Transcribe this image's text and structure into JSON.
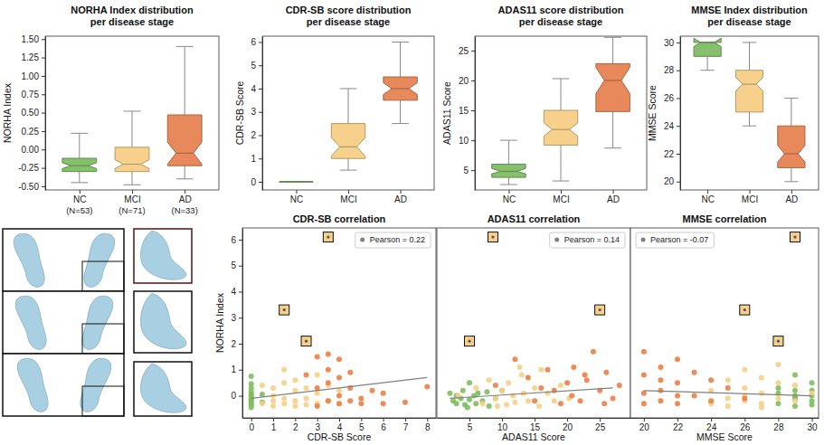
{
  "chart_data": [
    {
      "type": "box",
      "title": "NORHA Index distribution per disease stage",
      "y_label": "NORHA Index",
      "categories": [
        "NC",
        "MCI",
        "AD"
      ],
      "category_notes": [
        "(N=53)",
        "(N=71)",
        "(N=33)"
      ],
      "colors": [
        "#86c06c",
        "#f7d18b",
        "#e8895c"
      ],
      "boxes": [
        {
          "min": -0.45,
          "q1": -0.3,
          "median": -0.22,
          "q3": -0.12,
          "max": 0.22,
          "notch_low": -0.26,
          "notch_high": -0.18
        },
        {
          "min": -0.48,
          "q1": -0.3,
          "median": -0.2,
          "q3": 0.03,
          "max": 0.52,
          "notch_low": -0.26,
          "notch_high": -0.14
        },
        {
          "min": -0.4,
          "q1": -0.22,
          "median": -0.05,
          "q3": 0.47,
          "max": 1.4,
          "notch_low": -0.2,
          "notch_high": 0.1
        }
      ],
      "ylim": [
        -0.55,
        1.54
      ],
      "yticks": [
        {
          "value": -0.5,
          "label": "-0.50"
        },
        {
          "value": -0.25,
          "label": "-0.25"
        },
        {
          "value": 0,
          "label": "0.00"
        },
        {
          "value": 0.25,
          "label": "0.25"
        },
        {
          "value": 0.5,
          "label": "0.50"
        },
        {
          "value": 0.75,
          "label": "0.75"
        },
        {
          "value": 1,
          "label": "1.00"
        },
        {
          "value": 1.25,
          "label": "1.25"
        },
        {
          "value": 1.5,
          "label": "1.50"
        }
      ]
    },
    {
      "type": "box",
      "title": "CDR-SB score distribution per disease stage",
      "y_label": "CDR-SB Score",
      "categories": [
        "NC",
        "MCI",
        "AD"
      ],
      "colors": [
        "#86c06c",
        "#f7d18b",
        "#e8895c"
      ],
      "boxes": [
        {
          "min": 0,
          "q1": 0,
          "median": 0,
          "q3": 0,
          "max": 0,
          "notch_low": 0,
          "notch_high": 0
        },
        {
          "min": 0.5,
          "q1": 1.0,
          "median": 1.5,
          "q3": 2.5,
          "max": 4.0,
          "notch_low": 1.1,
          "notch_high": 1.9
        },
        {
          "min": 2.5,
          "q1": 3.5,
          "median": 4.0,
          "q3": 4.5,
          "max": 6.0,
          "notch_low": 3.75,
          "notch_high": 4.25
        }
      ],
      "ylim": [
        -0.35,
        6.25
      ],
      "yticks": [
        0,
        1,
        2,
        3,
        4,
        5,
        6
      ]
    },
    {
      "type": "box",
      "title": "ADAS11 score distribution per disease stage",
      "y_label": "ADAS11 Score",
      "categories": [
        "NC",
        "MCI",
        "AD"
      ],
      "colors": [
        "#86c06c",
        "#f7d18b",
        "#e8895c"
      ],
      "boxes": [
        {
          "min": 2.6,
          "q1": 3.8,
          "median": 4.8,
          "q3": 6.0,
          "max": 10,
          "notch_low": 4.4,
          "notch_high": 5.3
        },
        {
          "min": 3.2,
          "q1": 9.2,
          "median": 11.8,
          "q3": 15,
          "max": 20.3,
          "notch_low": 10.7,
          "notch_high": 12.9
        },
        {
          "min": 8.7,
          "q1": 14.8,
          "median": 20,
          "q3": 22.8,
          "max": 27.2,
          "notch_low": 17.8,
          "notch_high": 22.2
        }
      ],
      "ylim": [
        1.7,
        27.4
      ],
      "yticks": [
        5,
        10,
        15,
        20,
        25
      ]
    },
    {
      "type": "box",
      "title": "MMSE Index distribution per disease stage",
      "y_label": "MMSE Score",
      "categories": [
        "NC",
        "MCI",
        "AD"
      ],
      "colors": [
        "#86c06c",
        "#f7d18b",
        "#e8895c"
      ],
      "boxes": [
        {
          "min": 28,
          "q1": 29,
          "median": 30,
          "q3": 30,
          "max": 30,
          "notch_low": 29.7,
          "notch_high": 30.3
        },
        {
          "min": 24,
          "q1": 25,
          "median": 27,
          "q3": 28,
          "max": 30,
          "notch_low": 26.5,
          "notch_high": 27.5
        },
        {
          "min": 20,
          "q1": 21,
          "median": 22,
          "q3": 24,
          "max": 26,
          "notch_low": 21.4,
          "notch_high": 22.6
        }
      ],
      "ylim": [
        19.4,
        30.45
      ],
      "yticks": [
        20,
        22,
        24,
        26,
        28,
        30
      ]
    },
    {
      "type": "scatter",
      "title": "CDR-SB correlation",
      "x_label": "CDR-SB Score",
      "y_label": "NORHA Index",
      "xlim": [
        -0.4,
        8.4
      ],
      "xticks": [
        0,
        1,
        2,
        3,
        4,
        5,
        6,
        7,
        8
      ],
      "ylim": [
        -0.85,
        6.45
      ],
      "yticks": [
        0,
        1,
        2,
        3,
        4,
        5,
        6
      ],
      "legend": "upper right",
      "series": [
        {
          "color": "#7dbf5c",
          "x": [
            0,
            0,
            0,
            0,
            0,
            0,
            0,
            0,
            0,
            0,
            0,
            0,
            0.5,
            0.5
          ],
          "values": [
            0.75,
            0.45,
            0.3,
            0.15,
            0.05,
            0,
            -0.1,
            -0.15,
            -0.2,
            -0.3,
            -0.35,
            -0.45,
            0.05,
            -0.25
          ]
        },
        {
          "color": "#f5cf85",
          "x": [
            0.5,
            0.5,
            1,
            1,
            1,
            1,
            1.5,
            1.5,
            1.5,
            1.5,
            2,
            2,
            2,
            2,
            2.5,
            2.5,
            2.5,
            3,
            3,
            3,
            3.5,
            3.5,
            4,
            4
          ],
          "values": [
            0.4,
            -0.3,
            0.3,
            0,
            -0.2,
            -0.4,
            1.0,
            0.5,
            -0.1,
            -0.3,
            0.6,
            0.2,
            -0.2,
            -0.4,
            0.3,
            -0.1,
            -0.35,
            0.8,
            0.1,
            -0.3,
            0.4,
            -0.2,
            0.2,
            -0.3
          ]
        },
        {
          "color": "#ec7f46",
          "x": [
            2.5,
            3,
            3,
            3,
            3.5,
            3.5,
            3.5,
            3.5,
            4,
            4,
            4,
            4,
            4.5,
            4.5,
            4.5,
            5,
            5,
            5.5,
            6,
            6,
            7,
            8
          ],
          "values": [
            0.8,
            1.5,
            0.3,
            -0.4,
            1.6,
            1.0,
            0.5,
            -0.2,
            1.4,
            0.7,
            0,
            -0.3,
            0.9,
            0.3,
            -0.2,
            -0.1,
            -0.3,
            0.2,
            0.1,
            -0.3,
            -0.25,
            0.35
          ]
        },
        {
          "color": "#f7d18b",
          "marker": "square",
          "x": [
            1.5,
            2.5,
            3.5
          ],
          "values": [
            3.3,
            2.1,
            6.1
          ]
        },
        {
          "name": "Pearson = 0.22",
          "type": "line",
          "color": "#808080",
          "marker": "circle",
          "x": [
            0,
            8
          ],
          "values": [
            -0.1,
            0.7
          ]
        }
      ]
    },
    {
      "type": "scatter",
      "title": "ADAS11 correlation",
      "x_label": "ADAS11 Score",
      "xlim": [
        0,
        29.7
      ],
      "xticks": [
        5,
        10,
        15,
        20,
        25
      ],
      "ylim": [
        -0.85,
        6.45
      ],
      "tick_labels": "x",
      "legend": "upper right",
      "series": [
        {
          "color": "#7dbf5c",
          "x": [
            2,
            2.5,
            3,
            3,
            3.7,
            4,
            4.3,
            4.7,
            5,
            5,
            5.7,
            6,
            6.3,
            7,
            7.7,
            8,
            9,
            10
          ],
          "values": [
            0.1,
            -0.2,
            0,
            -0.3,
            -0.1,
            0.2,
            -0.35,
            -0.45,
            0.5,
            -0.15,
            0,
            -0.3,
            0.1,
            -0.2,
            0.15,
            -0.4,
            -0.1,
            0.2
          ]
        },
        {
          "color": "#f5cf85",
          "x": [
            3.3,
            6,
            7,
            8,
            9,
            9.3,
            10,
            10.7,
            11,
            11.7,
            12,
            12.7,
            13,
            13.3,
            14,
            15,
            15.7,
            16,
            17,
            18,
            19,
            20.3
          ],
          "values": [
            0,
            0.3,
            -0.3,
            0.6,
            -0.1,
            -0.4,
            0.2,
            -0.35,
            0.5,
            0,
            -0.25,
            1.1,
            0.8,
            0.1,
            -0.2,
            0.3,
            -0.4,
            1.0,
            0.1,
            -0.2,
            0.4,
            -0.1
          ]
        },
        {
          "color": "#ec7f46",
          "x": [
            9,
            12,
            14,
            15,
            16,
            17,
            18,
            19,
            20,
            20.7,
            21,
            22,
            22.7,
            23,
            24,
            25,
            25.7,
            26,
            27,
            28
          ],
          "values": [
            0.4,
            1.4,
            0.7,
            -0.2,
            0.3,
            1.0,
            0.2,
            -0.3,
            0.5,
            0,
            1.1,
            -0.2,
            0.8,
            0.6,
            1.7,
            0.2,
            -0.3,
            0.9,
            -0.1,
            0.4
          ]
        },
        {
          "color": "#f7d18b",
          "marker": "square",
          "x": [
            5,
            8.6,
            25
          ],
          "values": [
            2.1,
            6.1,
            3.3
          ]
        },
        {
          "name": "Pearson = 0.14",
          "type": "line",
          "color": "#808080",
          "marker": "circle",
          "x": [
            2,
            27
          ],
          "values": [
            -0.1,
            0.3
          ]
        }
      ]
    },
    {
      "type": "scatter",
      "title": "MMSE correlation",
      "x_label": "MMSE Score",
      "xlim": [
        19.2,
        30.4
      ],
      "xticks": [
        20,
        22,
        24,
        26,
        28,
        30
      ],
      "ylim": [
        -0.85,
        6.45
      ],
      "tick_labels": "x",
      "legend": "upper left",
      "series": [
        {
          "color": "#7dbf5c",
          "x": [
            28,
            28,
            28,
            29,
            29,
            29,
            29,
            29,
            30,
            30,
            30,
            30,
            30
          ],
          "values": [
            0.1,
            -0.3,
            0.3,
            0.8,
            0.2,
            0,
            -0.1,
            -0.4,
            0.5,
            0.2,
            0,
            -0.2,
            -0.35
          ]
        },
        {
          "color": "#f5cf85",
          "x": [
            24,
            24,
            25,
            25,
            25,
            26,
            26,
            26,
            26,
            27,
            27,
            27,
            27,
            28,
            28,
            28,
            29,
            29,
            30
          ],
          "values": [
            0.2,
            -0.3,
            0.6,
            -0.1,
            -0.4,
            1.0,
            0.3,
            0,
            -0.2,
            0.7,
            0.1,
            -0.3,
            -0.45,
            1.2,
            0.5,
            -0.1,
            0.4,
            -0.2,
            0.1
          ]
        },
        {
          "color": "#ec7f46",
          "x": [
            20,
            20,
            20,
            20,
            21,
            21,
            21,
            21,
            22,
            22,
            22,
            22,
            23,
            23,
            24,
            24,
            25,
            26
          ],
          "values": [
            1.7,
            0.8,
            0.1,
            -0.3,
            1.1,
            0.6,
            0.2,
            -0.2,
            1.4,
            0.5,
            0,
            -0.3,
            0.9,
            0,
            0.6,
            -0.2,
            0.3,
            -0.1
          ]
        },
        {
          "color": "#f7d18b",
          "marker": "square",
          "x": [
            26,
            28,
            29
          ],
          "values": [
            3.3,
            2.1,
            6.1
          ]
        },
        {
          "name": "Pearson = -0.07",
          "type": "line",
          "color": "#808080",
          "marker": "circle",
          "x": [
            20,
            30
          ],
          "values": [
            0.2,
            0
          ]
        }
      ]
    }
  ]
}
